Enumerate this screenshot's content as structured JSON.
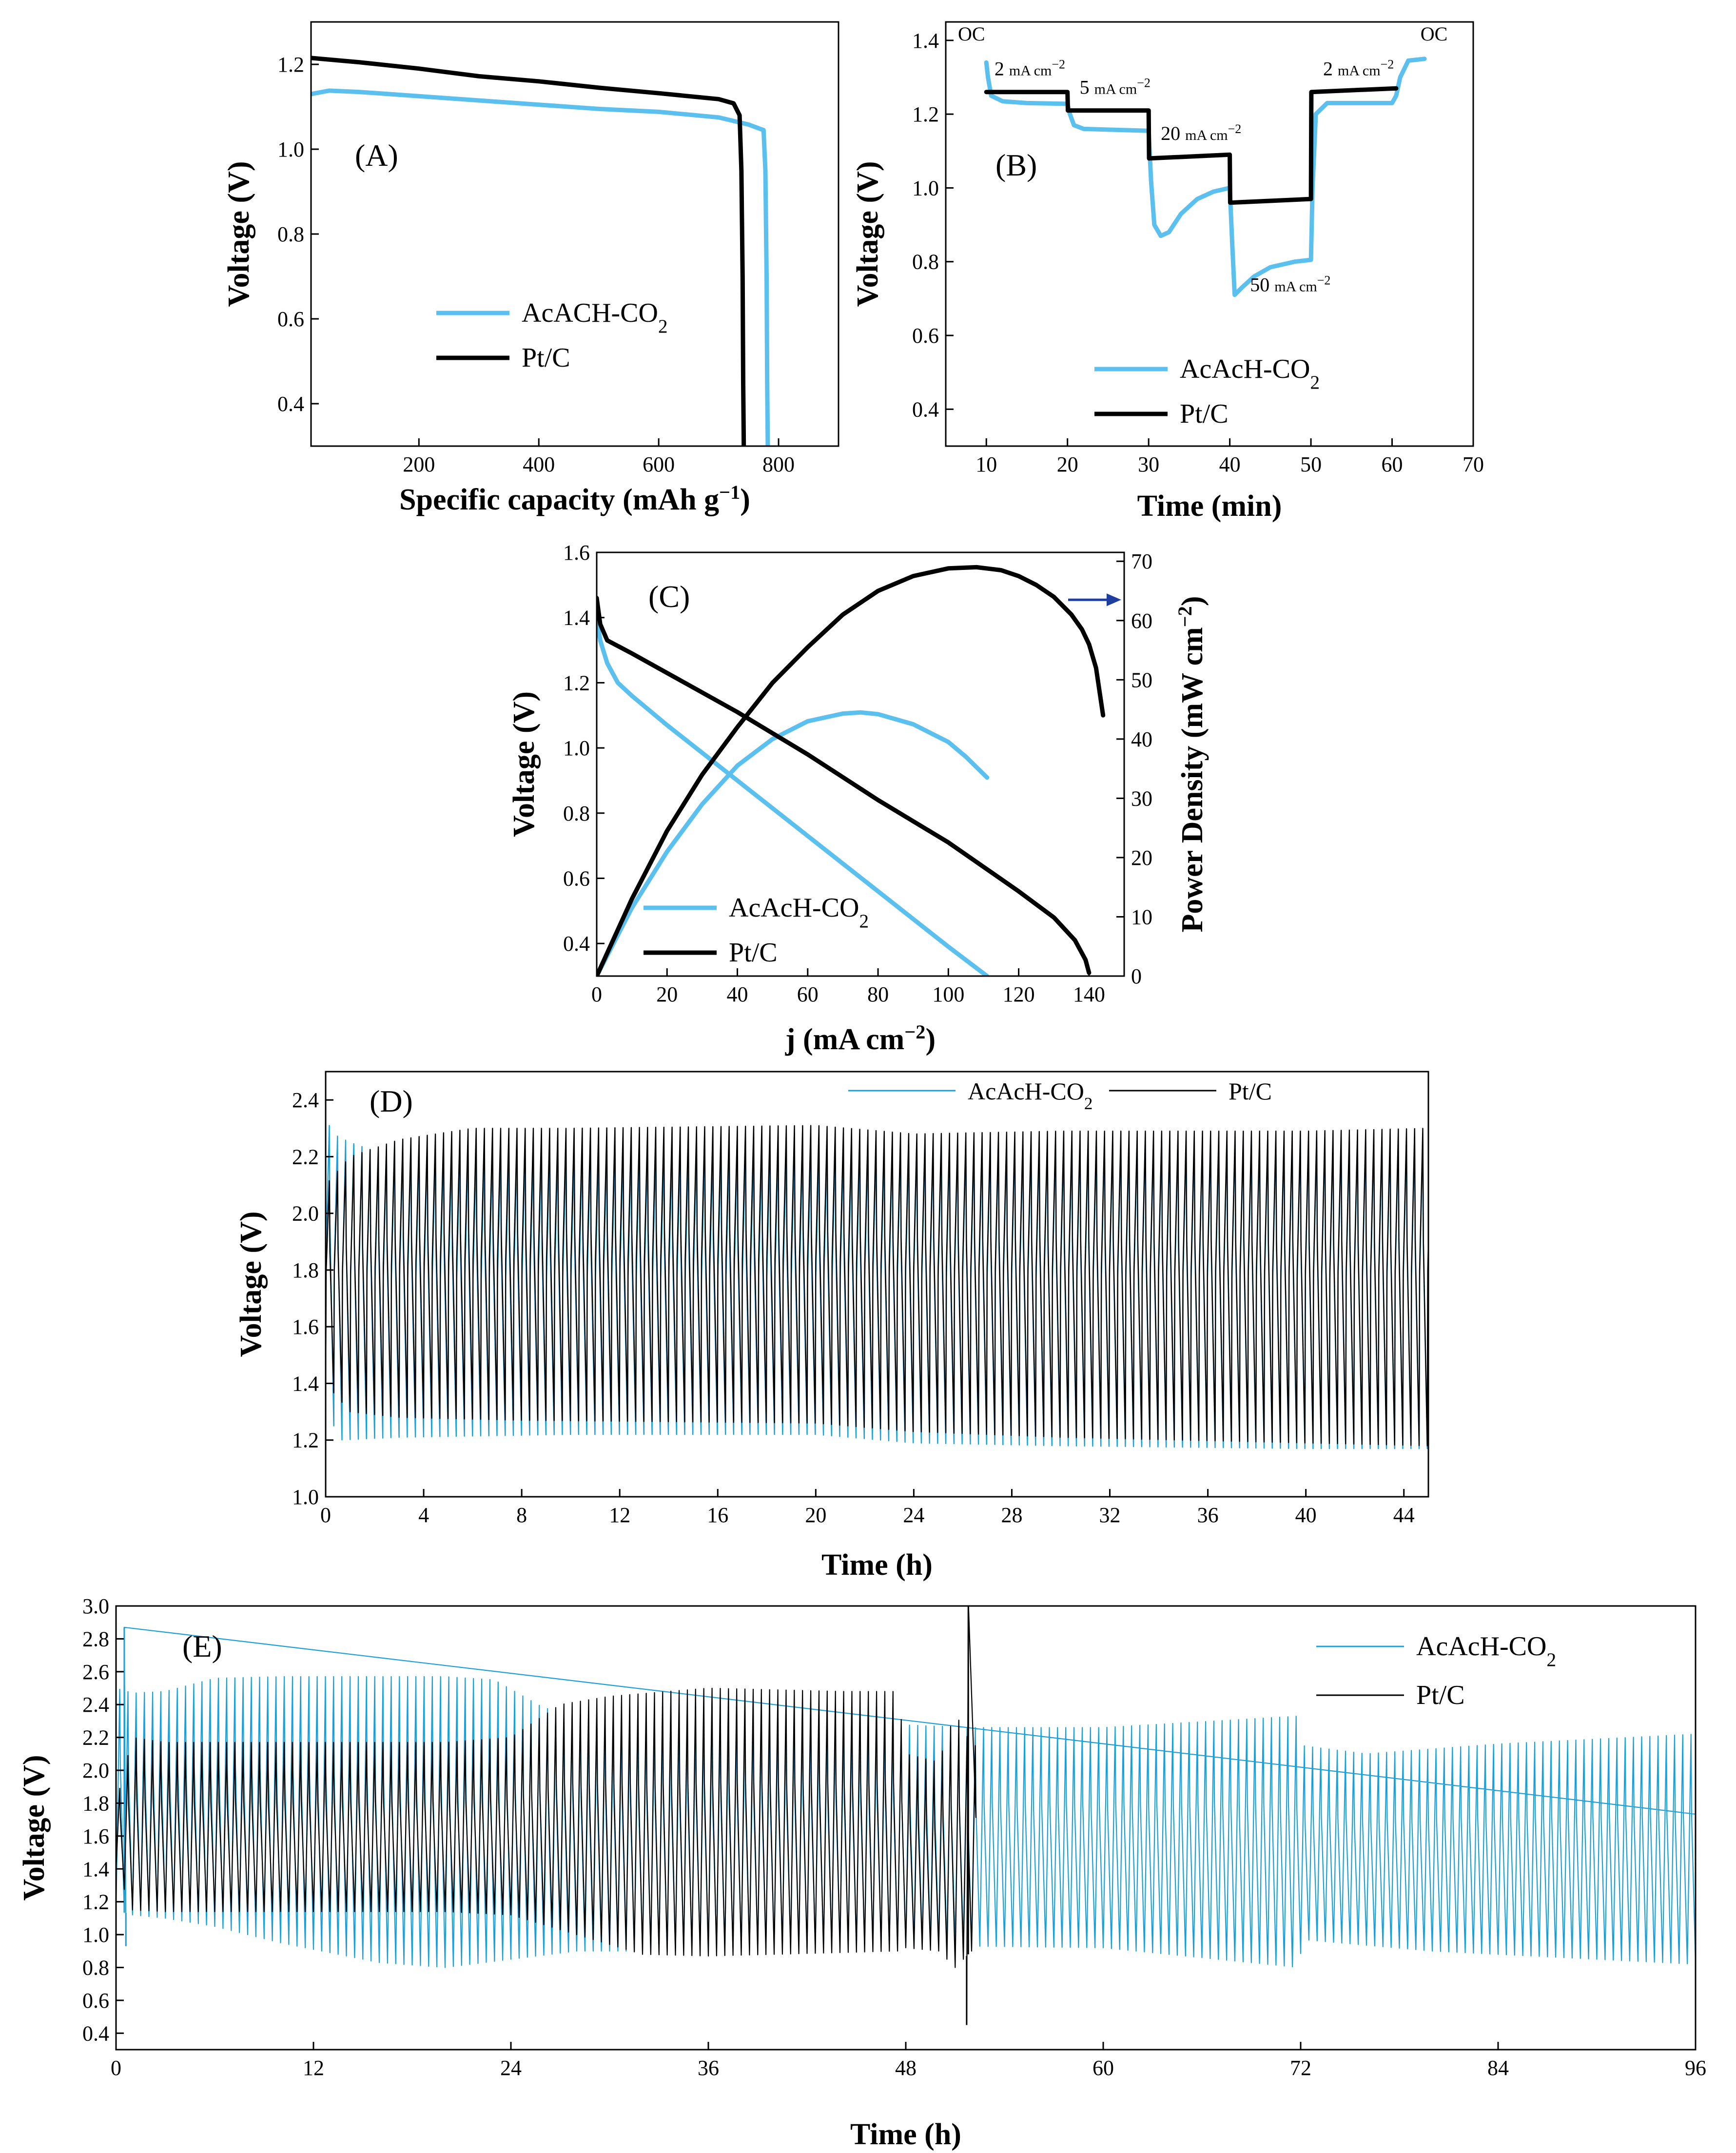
{
  "colors": {
    "blue": "#5bc0ee",
    "blue_dark": "#1aa0d8",
    "black": "#000000",
    "arrow": "#1f3fa0"
  },
  "chart_data": [
    {
      "panel": "(A)",
      "type": "line",
      "xlabel": "Specific capacity (mAh g",
      "xlabel_sup": "−1",
      "xlabel_end": ")",
      "ylabel": "Voltage (V)",
      "xlim": [
        20,
        900
      ],
      "ylim": [
        0.3,
        1.3
      ],
      "xticks": [
        "200",
        "400",
        "600",
        "800"
      ],
      "yticks": [
        "0.4",
        "0.6",
        "0.8",
        "1.0",
        "1.2"
      ],
      "legend": {
        "location": "center-right",
        "entries": [
          {
            "label": "AcACH-CO",
            "sub": "2",
            "color": "#5bc0ee"
          },
          {
            "label": "Pt/C",
            "sub": "",
            "color": "#000000"
          }
        ]
      },
      "series": [
        {
          "name": "AcACH-CO2",
          "color": "#5bc0ee",
          "x": [
            20,
            50,
            100,
            200,
            300,
            400,
            500,
            600,
            700,
            750,
            775,
            778,
            780,
            781,
            782
          ],
          "y": [
            1.13,
            1.138,
            1.135,
            1.125,
            1.115,
            1.105,
            1.095,
            1.088,
            1.075,
            1.058,
            1.045,
            0.95,
            0.7,
            0.45,
            0.3
          ]
        },
        {
          "name": "Pt/C",
          "color": "#000000",
          "x": [
            20,
            100,
            200,
            300,
            400,
            500,
            600,
            700,
            725,
            735,
            738,
            740,
            741,
            742
          ],
          "y": [
            1.215,
            1.205,
            1.19,
            1.172,
            1.16,
            1.145,
            1.132,
            1.118,
            1.108,
            1.08,
            0.95,
            0.7,
            0.45,
            0.3
          ]
        }
      ]
    },
    {
      "panel": "(B)",
      "type": "line",
      "xlabel": "Time (min)",
      "ylabel": "Voltage (V)",
      "xlim": [
        5,
        70
      ],
      "ylim": [
        0.3,
        1.45
      ],
      "xticks": [
        "10",
        "20",
        "30",
        "40",
        "50",
        "60",
        "70"
      ],
      "yticks": [
        "0.4",
        "0.6",
        "0.8",
        "1.0",
        "1.2",
        "1.4"
      ],
      "annotations": [
        {
          "text": "OC",
          "x": 6.5,
          "y": 1.4
        },
        {
          "text": "2 mA cm",
          "sup": "−2",
          "x": 11,
          "y": 1.305
        },
        {
          "text": "5 mA cm",
          "sup": "−2",
          "x": 21.5,
          "y": 1.255
        },
        {
          "text": "20 mA cm",
          "sup": "−2",
          "x": 31.5,
          "y": 1.13
        },
        {
          "text": "50 mA cm",
          "sup": "−2",
          "x": 42.5,
          "y": 0.72
        },
        {
          "text": "2 mA cm",
          "sup": "−2",
          "x": 51.5,
          "y": 1.305
        },
        {
          "text": "OC",
          "x": 63.5,
          "y": 1.4
        }
      ],
      "legend": {
        "location": "bottom-center",
        "entries": [
          {
            "label": "AcAcH-CO",
            "sub": "2",
            "color": "#5bc0ee"
          },
          {
            "label": "Pt/C",
            "sub": "",
            "color": "#000000"
          }
        ]
      },
      "series": [
        {
          "name": "AcAcH-CO2",
          "color": "#5bc0ee",
          "x": [
            10.0,
            10.2,
            10.6,
            12,
            15,
            20.0,
            20.3,
            20.8,
            22,
            25,
            30.0,
            30.3,
            30.7,
            31.5,
            32.5,
            34,
            36,
            38,
            40.0,
            40.3,
            40.6,
            41.5,
            43,
            45,
            48,
            50.0,
            50.2,
            50.6,
            52,
            56,
            60.0,
            60.5,
            61.0,
            62,
            64
          ],
          "y": [
            1.34,
            1.3,
            1.25,
            1.235,
            1.23,
            1.228,
            1.2,
            1.17,
            1.16,
            1.158,
            1.155,
            1.02,
            0.9,
            0.87,
            0.88,
            0.93,
            0.97,
            0.99,
            1.0,
            0.85,
            0.71,
            0.73,
            0.76,
            0.785,
            0.8,
            0.805,
            1.0,
            1.2,
            1.23,
            1.23,
            1.23,
            1.25,
            1.3,
            1.345,
            1.35
          ]
        },
        {
          "name": "Pt/C",
          "color": "#000000",
          "x": [
            10.0,
            10.05,
            20.0,
            20.05,
            30.0,
            30.05,
            40.0,
            40.05,
            50.0,
            50.05,
            60.5
          ],
          "y": [
            1.26,
            1.26,
            1.26,
            1.21,
            1.21,
            1.08,
            1.09,
            0.96,
            0.97,
            1.26,
            1.27
          ]
        }
      ]
    },
    {
      "panel": "(C)",
      "type": "line",
      "xlabel": "j (mA cm",
      "xlabel_sup": "−2",
      "xlabel_end": ")",
      "ylabel": "Voltage (V)",
      "ylabel2": "Power Density (mW cm",
      "ylabel2_sup": "−2",
      "ylabel2_end": ")",
      "xlim": [
        0,
        150
      ],
      "ylim": [
        0.3,
        1.6
      ],
      "y2lim": [
        0,
        71.5
      ],
      "xticks": [
        "0",
        "20",
        "40",
        "60",
        "80",
        "100",
        "120",
        "140"
      ],
      "yticks": [
        "0.4",
        "0.6",
        "0.8",
        "1.0",
        "1.2",
        "1.4",
        "1.6"
      ],
      "y2ticks": [
        "0",
        "10",
        "20",
        "30",
        "40",
        "50",
        "60",
        "70"
      ],
      "legend": {
        "location": "bottom-left",
        "entries": [
          {
            "label": "AcAcH-CO",
            "sub": "2",
            "color": "#5bc0ee"
          },
          {
            "label": "Pt/C",
            "sub": "",
            "color": "#000000"
          }
        ]
      },
      "series": [
        {
          "name": "AcAcH-CO2 voltage",
          "axis": "left",
          "color": "#5bc0ee",
          "x": [
            0,
            1,
            3,
            6,
            10,
            20,
            40,
            60,
            80,
            100,
            111
          ],
          "y": [
            1.4,
            1.33,
            1.26,
            1.2,
            1.16,
            1.07,
            0.9,
            0.73,
            0.56,
            0.39,
            0.3
          ]
        },
        {
          "name": "AcAcH-CO2 power",
          "axis": "right",
          "color": "#5bc0ee",
          "x": [
            0,
            10,
            20,
            30,
            40,
            50,
            60,
            70,
            75,
            80,
            90,
            100,
            105,
            111
          ],
          "y": [
            0,
            11.5,
            21,
            29,
            35.5,
            40,
            43,
            44.3,
            44.5,
            44.2,
            42.5,
            39.5,
            37,
            33.5
          ]
        },
        {
          "name": "Pt/C voltage",
          "axis": "left",
          "color": "#000000",
          "x": [
            0,
            1,
            3,
            10,
            20,
            40,
            60,
            80,
            100,
            120,
            130,
            136,
            139,
            140
          ],
          "y": [
            1.46,
            1.38,
            1.33,
            1.29,
            1.23,
            1.11,
            0.98,
            0.84,
            0.71,
            0.56,
            0.48,
            0.41,
            0.35,
            0.31
          ]
        },
        {
          "name": "Pt/C power",
          "axis": "right",
          "color": "#000000",
          "x": [
            0,
            10,
            20,
            30,
            40,
            50,
            60,
            70,
            80,
            90,
            100,
            108,
            115,
            120,
            125,
            130,
            135,
            138,
            140,
            142,
            144
          ],
          "y": [
            0,
            13,
            24.5,
            34,
            42,
            49.5,
            55.5,
            61,
            65,
            67.5,
            68.8,
            69,
            68.5,
            67.5,
            66,
            64,
            61,
            58.5,
            56,
            52,
            44
          ]
        }
      ],
      "arrow_note": "Pt/C power curve plotted on right axis"
    },
    {
      "panel": "(D)",
      "type": "line",
      "xlabel": "Time (h)",
      "ylabel": "Voltage (V)",
      "xlim": [
        0,
        45
      ],
      "ylim": [
        1.0,
        2.5
      ],
      "xticks": [
        "0",
        "4",
        "8",
        "12",
        "16",
        "20",
        "24",
        "28",
        "32",
        "36",
        "40",
        "44"
      ],
      "yticks": [
        "1.0",
        "1.2",
        "1.4",
        "1.6",
        "1.8",
        "2.0",
        "2.2",
        "2.4"
      ],
      "legend": {
        "location": "top-right",
        "entries": [
          {
            "label": "AcAcH-CO",
            "sub": "2",
            "color": "#1aa0d8"
          },
          {
            "label": "Pt/C",
            "sub": "",
            "color": "#000000"
          }
        ]
      },
      "series": [
        {
          "name": "AcAcH-CO2",
          "color": "#1aa0d8",
          "pattern": "galvanostatic charge/discharge cycling",
          "cycle_period_h": 0.333,
          "upper_envelope": {
            "x": [
              0,
              0.3,
              1,
              2,
              3,
              6,
              20,
              24,
              30,
              40,
              45
            ],
            "y": [
              2.34,
              2.28,
              2.25,
              2.22,
              2.23,
              2.22,
              2.22,
              2.24,
              2.25,
              2.26,
              2.26
            ]
          },
          "lower_envelope": {
            "x": [
              0,
              0.5,
              3,
              10,
              20,
              24,
              30,
              40,
              45
            ],
            "y": [
              1.35,
              1.2,
              1.21,
              1.22,
              1.22,
              1.19,
              1.18,
              1.17,
              1.17
            ]
          }
        },
        {
          "name": "Pt/C",
          "color": "#000000",
          "pattern": "galvanostatic charge/discharge cycling",
          "cycle_period_h": 0.333,
          "upper_envelope": {
            "x": [
              0,
              1,
              3,
              6,
              10,
              20,
              24,
              30,
              40,
              45
            ],
            "y": [
              2.1,
              2.2,
              2.26,
              2.3,
              2.3,
              2.31,
              2.28,
              2.29,
              2.29,
              2.3
            ]
          },
          "lower_envelope": {
            "x": [
              0,
              1,
              3,
              8,
              20,
              24,
              30,
              40,
              45
            ],
            "y": [
              1.4,
              1.3,
              1.28,
              1.27,
              1.26,
              1.23,
              1.21,
              1.19,
              1.18
            ]
          }
        }
      ]
    },
    {
      "panel": "(E)",
      "type": "line",
      "xlabel": "Time (h)",
      "ylabel": "Voltage (V)",
      "xlim": [
        0,
        96
      ],
      "ylim": [
        0.3,
        3.0
      ],
      "xticks": [
        "0",
        "12",
        "24",
        "36",
        "48",
        "60",
        "72",
        "84",
        "96"
      ],
      "yticks": [
        "0.4",
        "0.6",
        "0.8",
        "1.0",
        "1.2",
        "1.4",
        "1.6",
        "1.8",
        "2.0",
        "2.2",
        "2.4",
        "2.6",
        "2.8",
        "3.0"
      ],
      "legend": {
        "location": "top-right",
        "entries": [
          {
            "label": "AcAcH-CO",
            "sub": "2",
            "color": "#1aa0d8"
          },
          {
            "label": "Pt/C",
            "sub": "",
            "color": "#000000"
          }
        ]
      },
      "series": [
        {
          "name": "AcAcH-CO2",
          "color": "#1aa0d8",
          "pattern": "galvanostatic charge/discharge cycling",
          "cycle_period_h": 0.5,
          "spikes": [
            {
              "x": 0.5,
              "y": 2.87
            },
            {
              "x": 0.6,
              "y": 0.93
            }
          ],
          "upper_envelope": {
            "x": [
              0,
              1,
              3,
              6,
              10,
              20,
              23,
              26,
              30,
              40,
              47,
              52,
              60,
              71.9,
              72.1,
              76,
              84,
              96
            ],
            "y": [
              2.5,
              2.47,
              2.48,
              2.56,
              2.57,
              2.57,
              2.55,
              2.38,
              2.3,
              2.29,
              2.28,
              2.26,
              2.26,
              2.33,
              2.15,
              2.1,
              2.16,
              2.22
            ]
          },
          "lower_envelope": {
            "x": [
              0,
              1,
              3,
              6,
              10,
              16,
              20,
              24,
              28,
              34,
              40,
              47,
              52,
              60,
              71.9,
              72.1,
              80,
              90,
              96
            ],
            "y": [
              1.15,
              1.12,
              1.1,
              1.05,
              0.95,
              0.83,
              0.8,
              0.85,
              0.9,
              0.9,
              0.92,
              0.93,
              0.93,
              0.92,
              0.8,
              0.97,
              0.9,
              0.85,
              0.82
            ]
          }
        },
        {
          "name": "Pt/C",
          "color": "#000000",
          "pattern": "galvanostatic charge/discharge cycling",
          "cycle_period_h": 0.5,
          "end_h": 52,
          "spikes": [
            {
              "x": 51.8,
              "y": 3.03
            },
            {
              "x": 51.7,
              "y": 0.45
            }
          ],
          "upper_envelope": {
            "x": [
              0,
              1,
              3,
              10,
              20,
              24,
              27,
              30,
              36,
              44,
              47.5,
              48,
              50,
              51,
              52
            ],
            "y": [
              1.8,
              2.2,
              2.17,
              2.17,
              2.17,
              2.2,
              2.4,
              2.45,
              2.5,
              2.48,
              2.48,
              2.1,
              2.05,
              2.35,
              2.15
            ]
          },
          "lower_envelope": {
            "x": [
              0,
              1,
              3,
              10,
              20,
              24,
              28,
              32,
              36,
              40,
              47.5,
              48,
              50,
              51,
              52
            ],
            "y": [
              1.4,
              1.15,
              1.14,
              1.14,
              1.14,
              1.12,
              1.0,
              0.88,
              0.87,
              0.88,
              0.9,
              0.92,
              0.9,
              0.8,
              0.9
            ]
          }
        }
      ]
    }
  ]
}
